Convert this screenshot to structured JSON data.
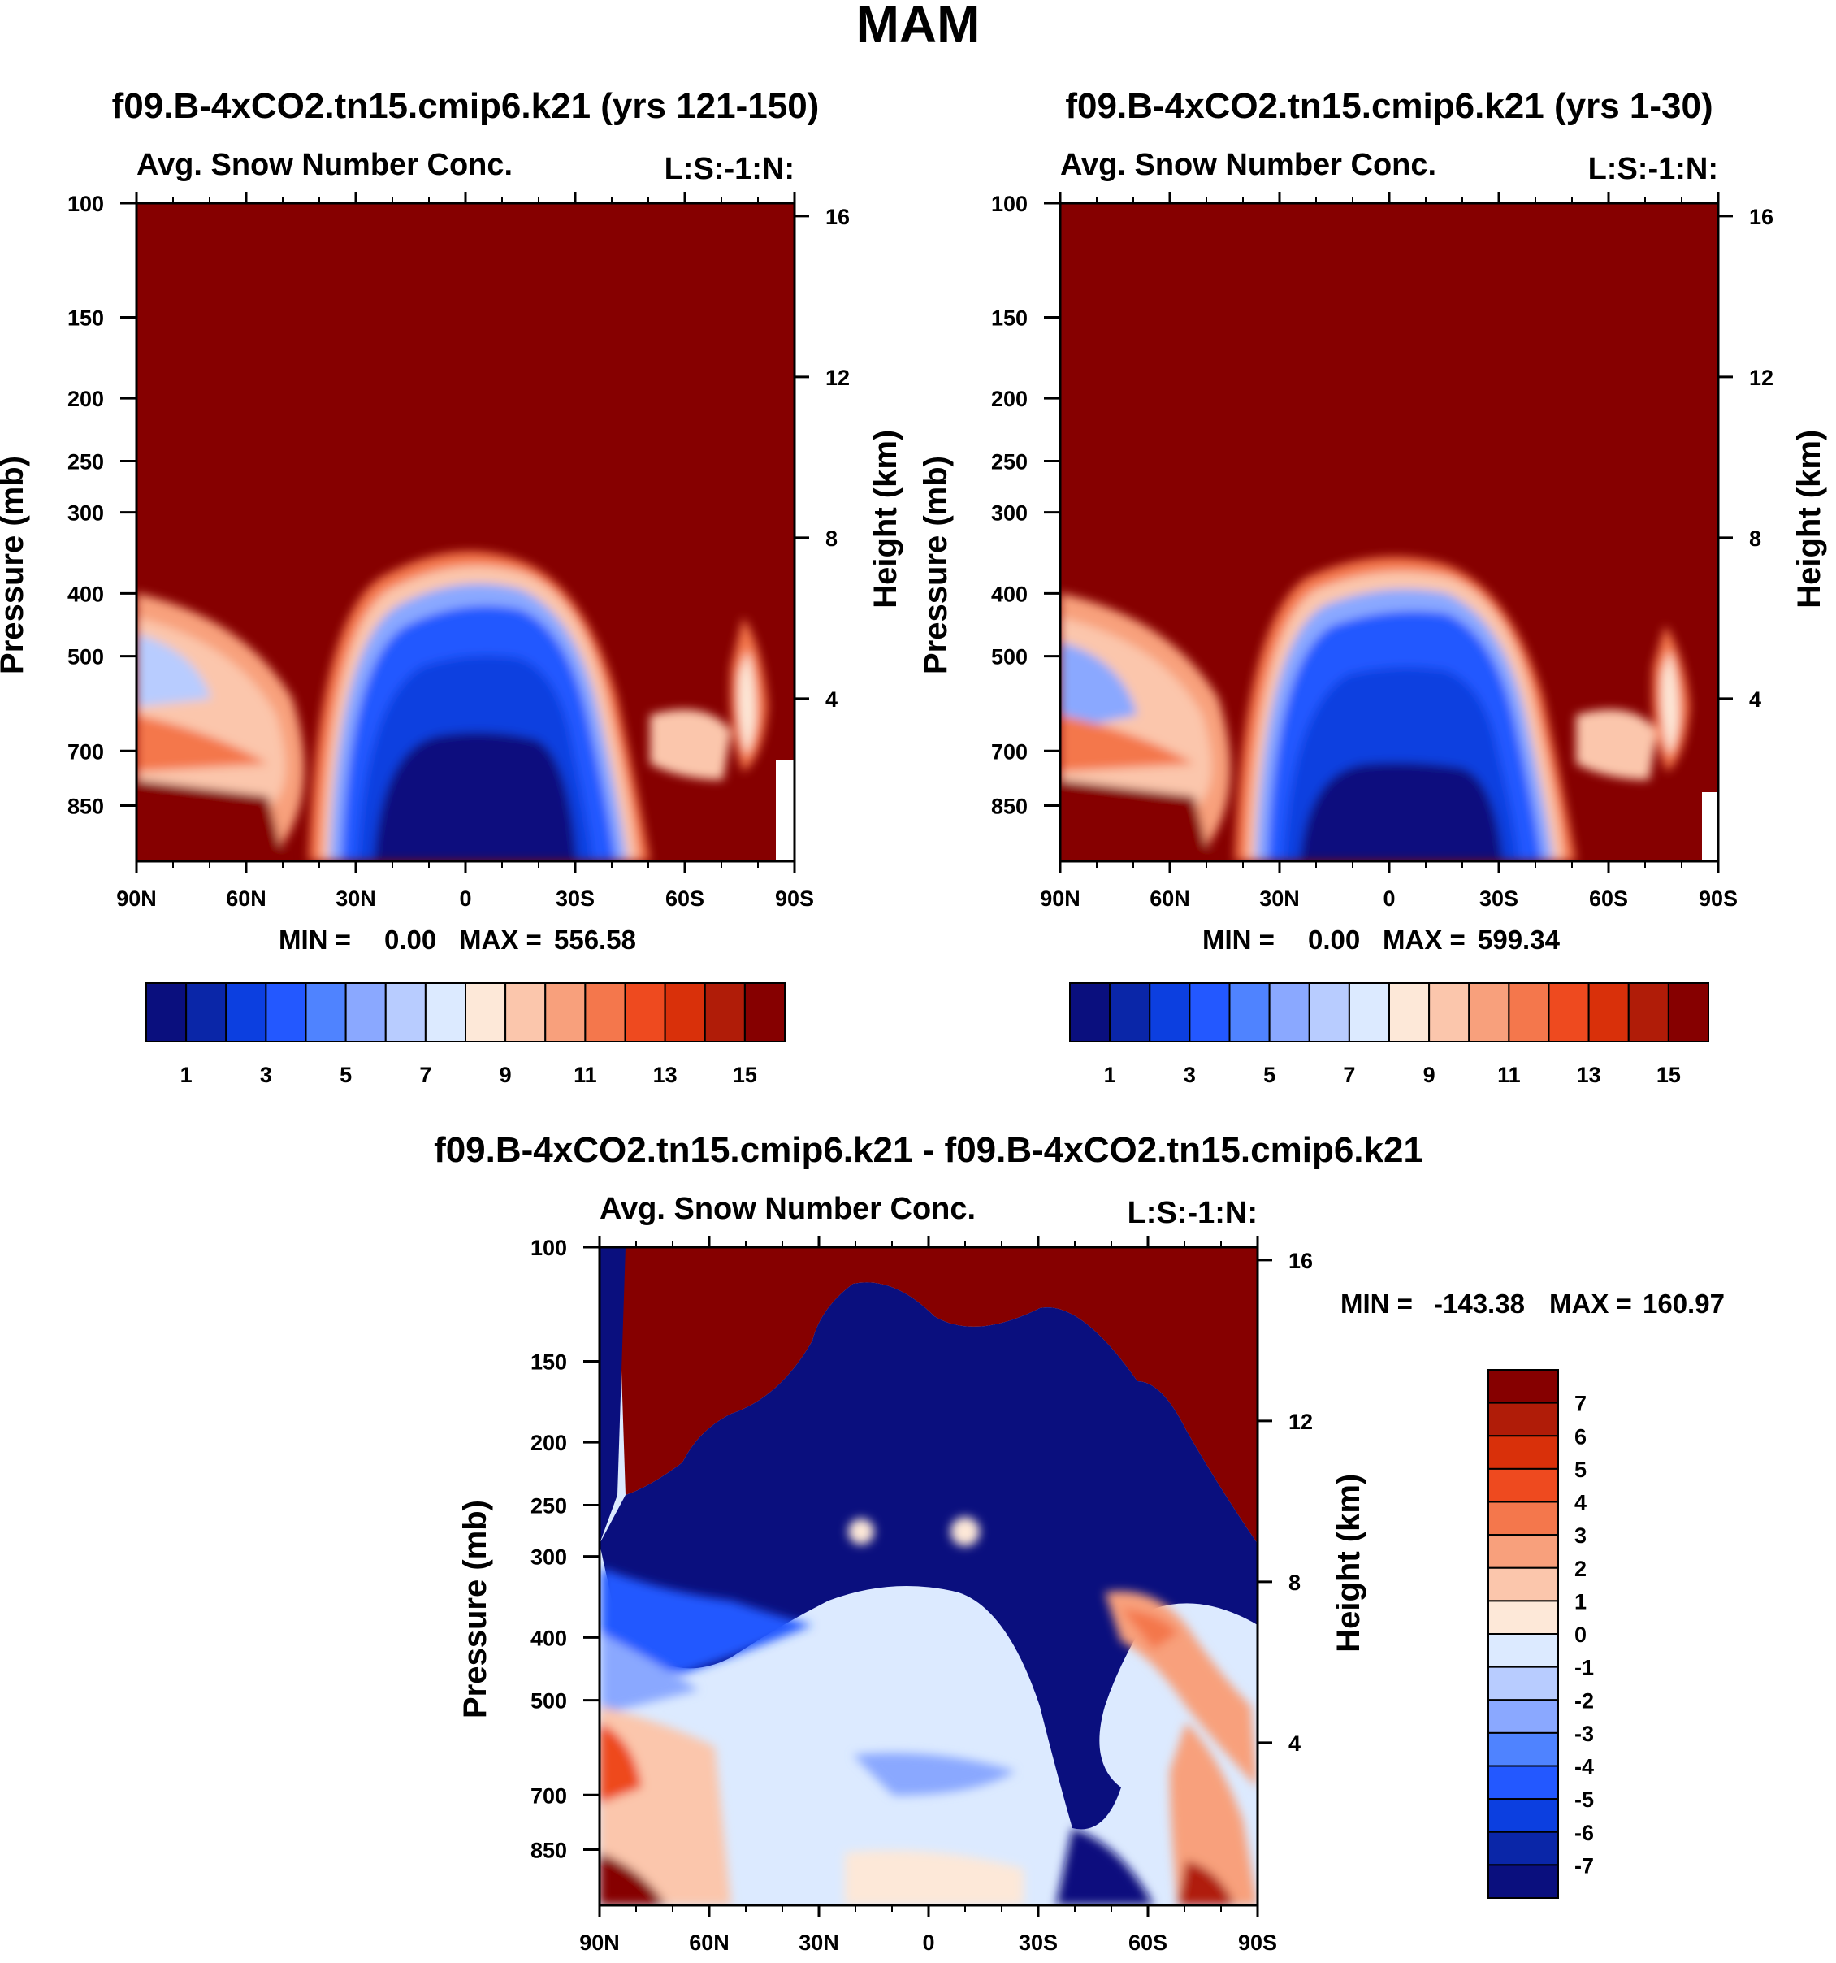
{
  "main_title": "MAM",
  "chart_data": [
    {
      "type": "heatmap",
      "title": "f09.B-4xCO2.tn15.cmip6.k21 (yrs 121-150)",
      "subtitle_left": "Avg. Snow Number Conc.",
      "subtitle_right": "L:S:-1:N:",
      "xlabel": "",
      "ylabel": "Pressure (mb)",
      "ylabel_right": "Height (km)",
      "x_ticks": [
        "90N",
        "60N",
        "30N",
        "0",
        "30S",
        "60S",
        "90S"
      ],
      "y_ticks": [
        "100",
        "150",
        "200",
        "250",
        "300",
        "400",
        "500",
        "700",
        "850"
      ],
      "y_ticks_right": [
        "16",
        "12",
        "8",
        "4"
      ],
      "min_label": "MIN =",
      "min_value": "0.00",
      "max_label": "MAX =",
      "max_value": "556.58",
      "colorbar_levels": [
        "1",
        "3",
        "5",
        "7",
        "9",
        "11",
        "13",
        "15"
      ],
      "colorbar_orientation": "horizontal"
    },
    {
      "type": "heatmap",
      "title": "f09.B-4xCO2.tn15.cmip6.k21 (yrs 1-30)",
      "subtitle_left": "Avg. Snow Number Conc.",
      "subtitle_right": "L:S:-1:N:",
      "xlabel": "",
      "ylabel": "Pressure (mb)",
      "ylabel_right": "Height (km)",
      "x_ticks": [
        "90N",
        "60N",
        "30N",
        "0",
        "30S",
        "60S",
        "90S"
      ],
      "y_ticks": [
        "100",
        "150",
        "200",
        "250",
        "300",
        "400",
        "500",
        "700",
        "850"
      ],
      "y_ticks_right": [
        "16",
        "12",
        "8",
        "4"
      ],
      "min_label": "MIN =",
      "min_value": "0.00",
      "max_label": "MAX =",
      "max_value": "599.34",
      "colorbar_levels": [
        "1",
        "3",
        "5",
        "7",
        "9",
        "11",
        "13",
        "15"
      ],
      "colorbar_orientation": "horizontal"
    },
    {
      "type": "heatmap",
      "title": "f09.B-4xCO2.tn15.cmip6.k21 - f09.B-4xCO2.tn15.cmip6.k21",
      "subtitle_left": "Avg. Snow Number Conc.",
      "subtitle_right": "L:S:-1:N:",
      "xlabel": "",
      "ylabel": "Pressure (mb)",
      "ylabel_right": "Height (km)",
      "x_ticks": [
        "90N",
        "60N",
        "30N",
        "0",
        "30S",
        "60S",
        "90S"
      ],
      "y_ticks": [
        "100",
        "150",
        "200",
        "250",
        "300",
        "400",
        "500",
        "700",
        "850"
      ],
      "y_ticks_right": [
        "16",
        "12",
        "8",
        "4"
      ],
      "min_label": "MIN =",
      "min_value": "-143.38",
      "max_label": "MAX =",
      "max_value": "160.97",
      "colorbar_levels": [
        "7",
        "6",
        "5",
        "4",
        "3",
        "2",
        "1",
        "0",
        "-1",
        "-2",
        "-3",
        "-4",
        "-5",
        "-6",
        "-7"
      ],
      "colorbar_orientation": "vertical"
    }
  ],
  "colorbar_colors": [
    "#0a0f7e",
    "#0a26a8",
    "#0c3fe0",
    "#2358ff",
    "#4f83ff",
    "#8aa8ff",
    "#b8ccff",
    "#dceaff",
    "#fde8d8",
    "#fbc6ac",
    "#f8a07c",
    "#f4774c",
    "#ee4a1f",
    "#d9300a",
    "#b01c08",
    "#860000"
  ],
  "diff_colorbar_colors": [
    "#860000",
    "#b01c08",
    "#d9300a",
    "#ee4a1f",
    "#f4774c",
    "#f8a07c",
    "#fbc6ac",
    "#fde8d8",
    "#dceaff",
    "#b8ccff",
    "#8aa8ff",
    "#4f83ff",
    "#2358ff",
    "#0c3fe0",
    "#0a26a8",
    "#0a0f7e"
  ]
}
